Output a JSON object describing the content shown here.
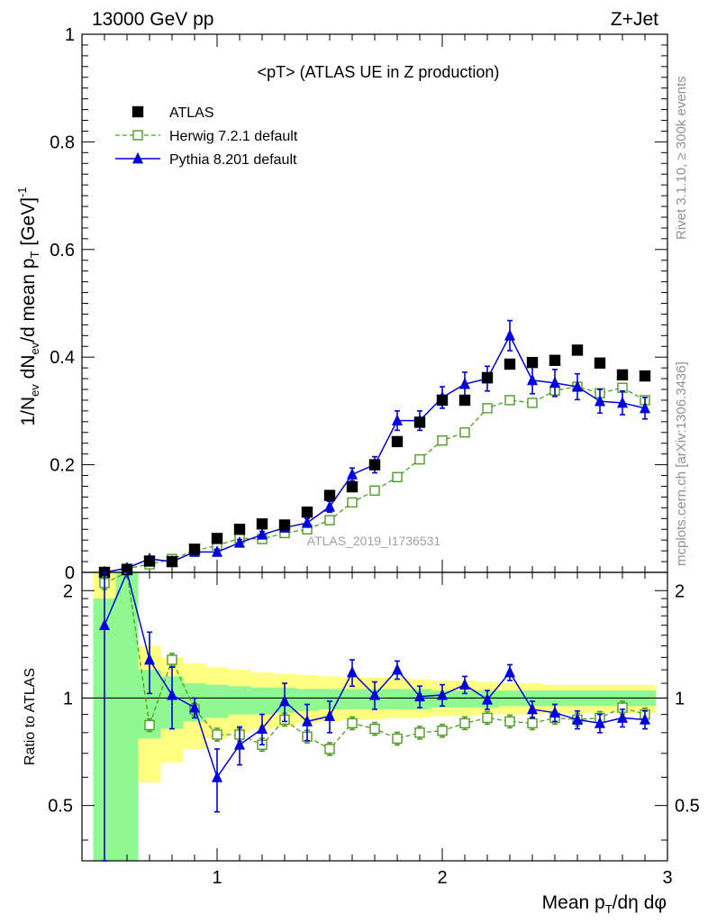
{
  "header": {
    "left": "13000 GeV pp",
    "right": "Z+Jet"
  },
  "side_text": {
    "rivet": "Rivet 3.1.10, ≥ 300k events",
    "mcplots": "mcplots.cern.ch [arXiv:1306.3436]"
  },
  "chart_data": {
    "type": "scatter",
    "title": "<pT> (ATLAS UE in Z production)",
    "watermark": "ATLAS_2019_I1736531",
    "xlabel": "Mean p_T/dη dφ",
    "ylabel": "1/N_ev dN_ev/d mean p_T [GeV]^-1",
    "ratio_ylabel": "Ratio to ATLAS",
    "xlim": [
      0.4,
      3.0
    ],
    "ylim": [
      0,
      1
    ],
    "ratio_ylim": [
      0.35,
      2.25
    ],
    "x_ticks": [
      "1",
      "2",
      "3"
    ],
    "y_ticks": [
      "0",
      "0.2",
      "0.4",
      "0.6",
      "0.8",
      "1"
    ],
    "ratio_ticks": [
      "0.5",
      "1",
      "2"
    ],
    "legend_position": "top-left",
    "x": [
      0.5,
      0.6,
      0.7,
      0.8,
      0.9,
      1.0,
      1.1,
      1.2,
      1.3,
      1.4,
      1.5,
      1.6,
      1.7,
      1.8,
      1.9,
      2.0,
      2.1,
      2.2,
      2.3,
      2.4,
      2.5,
      2.6,
      2.7,
      2.8,
      2.9
    ],
    "series": [
      {
        "name": "ATLAS",
        "style": "filled-square",
        "color": "#000000",
        "values": [
          0.0,
          0.005,
          0.021,
          0.02,
          0.043,
          0.063,
          0.08,
          0.09,
          0.088,
          0.112,
          0.143,
          0.159,
          0.2,
          0.243,
          0.279,
          0.32,
          0.32,
          0.362,
          0.387,
          0.39,
          0.394,
          0.413,
          0.389,
          0.367,
          0.365
        ]
      },
      {
        "name": "Herwig 7.2.1 default",
        "style": "open-square-dashed",
        "color": "#4d9c22",
        "values": [
          0.0,
          0.007,
          0.015,
          0.025,
          0.04,
          0.05,
          0.063,
          0.062,
          0.073,
          0.08,
          0.097,
          0.13,
          0.152,
          0.177,
          0.21,
          0.245,
          0.26,
          0.305,
          0.32,
          0.315,
          0.338,
          0.345,
          0.333,
          0.343,
          0.32
        ]
      },
      {
        "name": "Pythia 8.201 default",
        "style": "filled-triangle-solid",
        "color": "#0000e0",
        "values": [
          0.0,
          0.008,
          0.025,
          0.02,
          0.038,
          0.038,
          0.055,
          0.07,
          0.083,
          0.092,
          0.122,
          0.182,
          0.2,
          0.282,
          0.282,
          0.325,
          0.35,
          0.36,
          0.44,
          0.357,
          0.352,
          0.345,
          0.318,
          0.315,
          0.305
        ],
        "errors": [
          0.0,
          0.002,
          0.003,
          0.003,
          0.004,
          0.005,
          0.006,
          0.006,
          0.007,
          0.008,
          0.01,
          0.012,
          0.015,
          0.018,
          0.018,
          0.02,
          0.022,
          0.023,
          0.028,
          0.025,
          0.025,
          0.024,
          0.022,
          0.022,
          0.02
        ]
      }
    ],
    "ratio": {
      "herwig": [
        2.1,
        2.3,
        0.84,
        1.28,
        0.93,
        0.79,
        0.79,
        0.74,
        0.87,
        0.78,
        0.72,
        0.85,
        0.82,
        0.77,
        0.8,
        0.81,
        0.85,
        0.88,
        0.86,
        0.85,
        0.88,
        0.87,
        0.88,
        0.94,
        0.9
      ],
      "pythia": [
        1.6,
        2.3,
        1.28,
        1.02,
        0.94,
        0.6,
        0.74,
        0.82,
        0.98,
        0.86,
        0.89,
        1.18,
        1.02,
        1.2,
        1.01,
        1.02,
        1.09,
        0.99,
        1.18,
        0.93,
        0.91,
        0.87,
        0.85,
        0.88,
        0.87
      ],
      "pythia_err": [
        1.3,
        0.4,
        0.25,
        0.2,
        0.06,
        0.12,
        0.09,
        0.08,
        0.12,
        0.1,
        0.09,
        0.1,
        0.09,
        0.07,
        0.07,
        0.07,
        0.06,
        0.06,
        0.06,
        0.05,
        0.05,
        0.05,
        0.05,
        0.05,
        0.05
      ],
      "band_green": [
        [
          0.35,
          1.9
        ],
        [
          0.35,
          2.25
        ],
        [
          0.77,
          1.2
        ],
        [
          0.82,
          1.15
        ],
        [
          0.86,
          1.1
        ],
        [
          0.88,
          1.09
        ],
        [
          0.9,
          1.08
        ],
        [
          0.9,
          1.07
        ],
        [
          0.91,
          1.07
        ],
        [
          0.92,
          1.06
        ],
        [
          0.93,
          1.06
        ],
        [
          0.93,
          1.06
        ],
        [
          0.93,
          1.06
        ],
        [
          0.93,
          1.06
        ],
        [
          0.93,
          1.06
        ],
        [
          0.94,
          1.05
        ],
        [
          0.94,
          1.05
        ],
        [
          0.94,
          1.05
        ],
        [
          0.95,
          1.05
        ],
        [
          0.95,
          1.05
        ],
        [
          0.95,
          1.05
        ],
        [
          0.95,
          1.05
        ],
        [
          0.95,
          1.05
        ],
        [
          0.95,
          1.05
        ],
        [
          0.95,
          1.05
        ]
      ],
      "band_yellow": [
        [
          0.35,
          2.25
        ],
        [
          0.35,
          2.25
        ],
        [
          0.58,
          1.4
        ],
        [
          0.66,
          1.3
        ],
        [
          0.72,
          1.25
        ],
        [
          0.77,
          1.22
        ],
        [
          0.8,
          1.2
        ],
        [
          0.82,
          1.18
        ],
        [
          0.83,
          1.17
        ],
        [
          0.85,
          1.16
        ],
        [
          0.86,
          1.15
        ],
        [
          0.87,
          1.14
        ],
        [
          0.87,
          1.14
        ],
        [
          0.88,
          1.14
        ],
        [
          0.88,
          1.13
        ],
        [
          0.89,
          1.12
        ],
        [
          0.89,
          1.12
        ],
        [
          0.9,
          1.11
        ],
        [
          0.9,
          1.1
        ],
        [
          0.9,
          1.1
        ],
        [
          0.91,
          1.09
        ],
        [
          0.91,
          1.09
        ],
        [
          0.91,
          1.09
        ],
        [
          0.91,
          1.09
        ],
        [
          0.91,
          1.09
        ]
      ]
    }
  }
}
